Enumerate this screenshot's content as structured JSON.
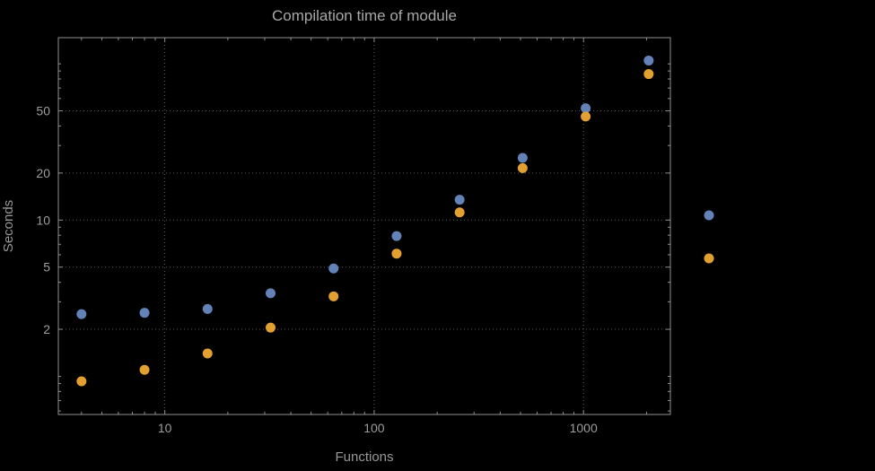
{
  "title": "Compilation time of module",
  "colors": {
    "background": "#000000",
    "frame": "#8f8f8f",
    "grid": "#5c5c5c",
    "text": "#9c9c9c",
    "series1": "#6382b8",
    "series2": "#e2a030"
  },
  "chart_data": {
    "type": "scatter",
    "title": "Compilation time of module",
    "xlabel": "Functions",
    "ylabel": "Seconds",
    "xscale": "log",
    "yscale": "log",
    "xlim": [
      3.1,
      2600
    ],
    "ylim": [
      0.57,
      147
    ],
    "x_ticks": [
      10,
      100,
      1000
    ],
    "y_ticks": [
      2,
      5,
      10,
      20,
      50
    ],
    "grid": true,
    "grid_style": "dotted",
    "x": [
      4,
      8,
      16,
      32,
      64,
      128,
      256,
      512,
      1024,
      2048
    ],
    "series": [
      {
        "name": "blue",
        "color": "#6382b8",
        "values": [
          2.5,
          2.55,
          2.7,
          3.4,
          4.9,
          7.9,
          13.5,
          25,
          52,
          105
        ]
      },
      {
        "name": "orange",
        "color": "#e2a030",
        "values": [
          0.93,
          1.1,
          1.4,
          2.05,
          3.25,
          6.1,
          11.2,
          21.5,
          46,
          86
        ]
      }
    ],
    "legend": {
      "position": "right-outside",
      "labels_visible": false,
      "markers": [
        {
          "series": "blue",
          "color": "#6382b8"
        },
        {
          "series": "orange",
          "color": "#e2a030"
        }
      ]
    }
  }
}
